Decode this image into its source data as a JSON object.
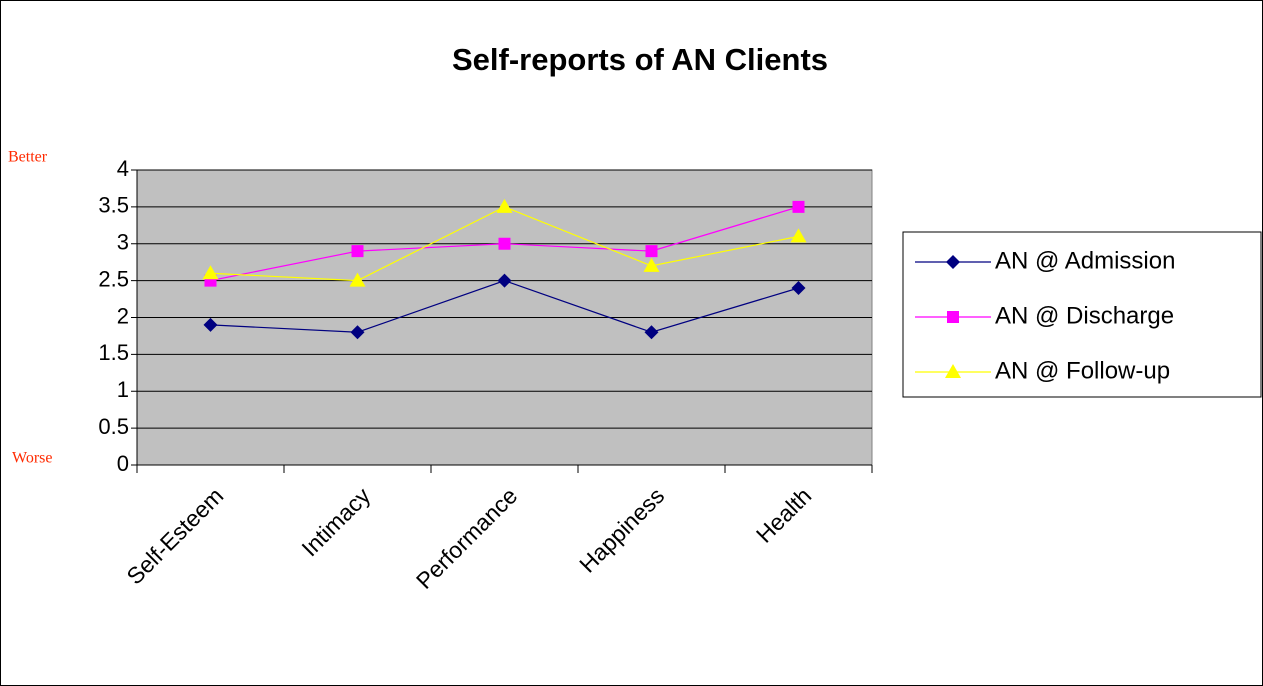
{
  "chart_data": {
    "type": "line",
    "title": "Self-reports of AN Clients",
    "categories": [
      "Self-Esteem",
      "Intimacy",
      "Performance",
      "Happiness",
      "Health"
    ],
    "series": [
      {
        "name": "AN @ Admission",
        "color": "#000080",
        "marker": "diamond",
        "values": [
          1.9,
          1.8,
          2.5,
          1.8,
          2.4
        ]
      },
      {
        "name": "AN @ Discharge",
        "color": "#ff00ff",
        "marker": "square",
        "values": [
          2.5,
          2.9,
          3.0,
          2.9,
          3.5
        ]
      },
      {
        "name": "AN @ Follow-up",
        "color": "#ffff00",
        "marker": "triangle",
        "values": [
          2.6,
          2.5,
          3.5,
          2.7,
          3.1
        ]
      }
    ],
    "ylim": [
      0,
      4
    ],
    "yticks": [
      0,
      0.5,
      1,
      1.5,
      2,
      2.5,
      3,
      3.5,
      4
    ],
    "grid": true,
    "annotations": {
      "top": "Better",
      "bottom": "Worse"
    },
    "legend": "right"
  }
}
